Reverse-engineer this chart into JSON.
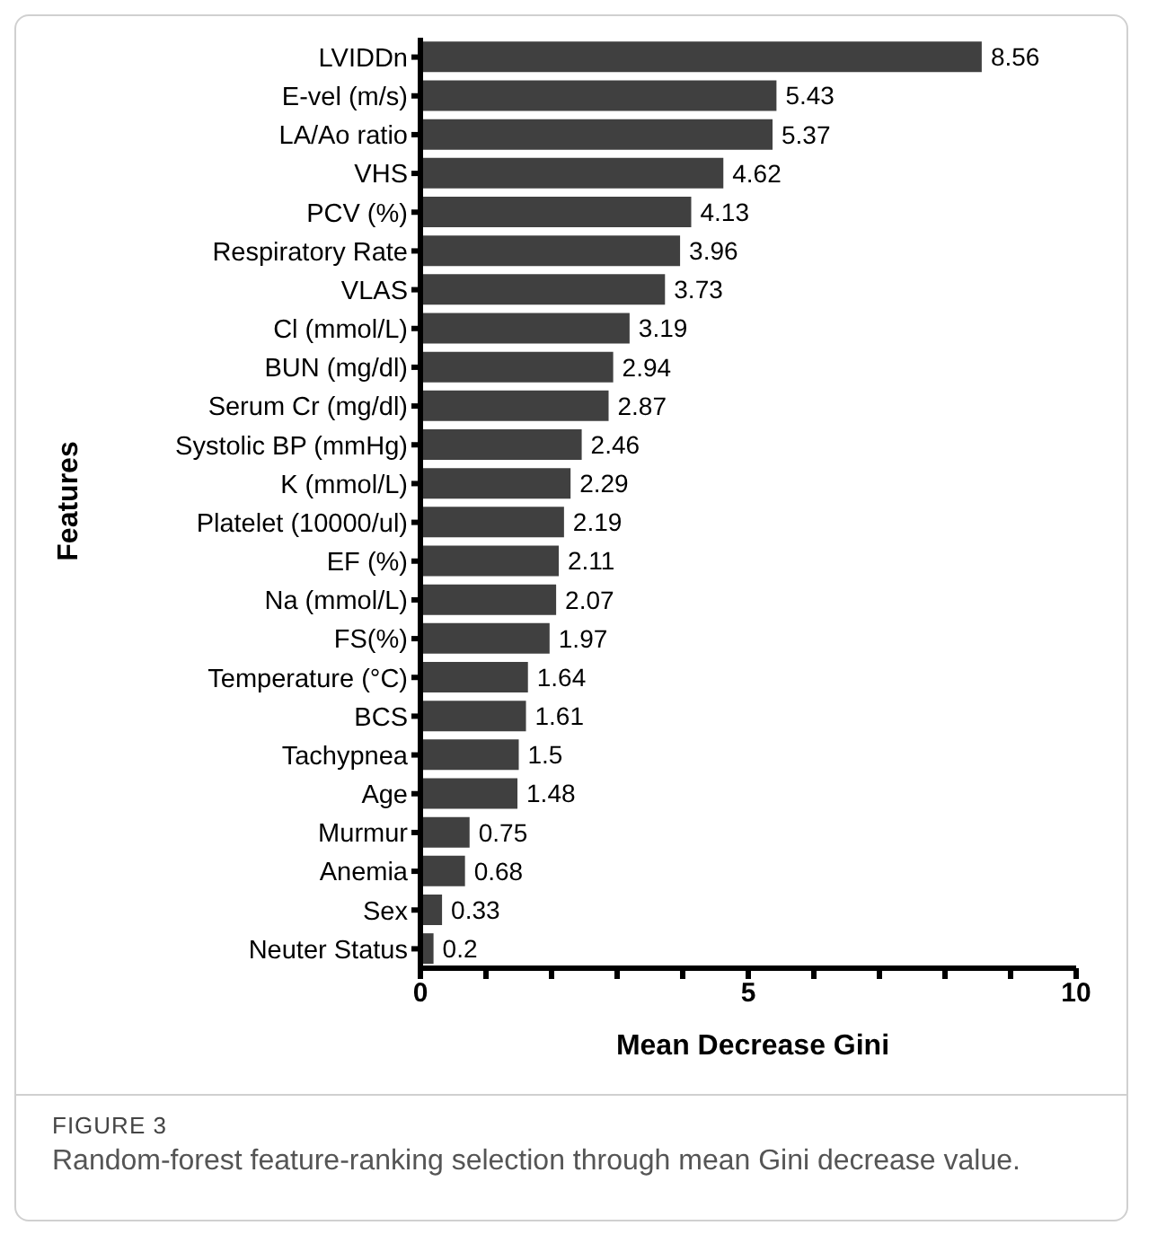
{
  "chart_data": {
    "type": "bar",
    "orientation": "horizontal",
    "categories": [
      "LVIDDn",
      "E-vel (m/s)",
      "LA/Ao ratio",
      "VHS",
      "PCV (%)",
      "Respiratory Rate",
      "VLAS",
      "Cl (mmol/L)",
      "BUN (mg/dl)",
      "Serum Cr (mg/dl)",
      "Systolic BP (mmHg)",
      "K (mmol/L)",
      "Platelet (10000/ul)",
      "EF (%)",
      "Na (mmol/L)",
      "FS(%)",
      "Temperature (°C)",
      "BCS",
      "Tachypnea",
      "Age",
      "Murmur",
      "Anemia",
      "Sex",
      "Neuter Status"
    ],
    "values": [
      8.56,
      5.43,
      5.37,
      4.62,
      4.13,
      3.96,
      3.73,
      3.19,
      2.94,
      2.87,
      2.46,
      2.29,
      2.19,
      2.11,
      2.07,
      1.97,
      1.64,
      1.61,
      1.5,
      1.48,
      0.75,
      0.68,
      0.33,
      0.2
    ],
    "color": "#404040",
    "data_labels": true,
    "xlabel": "Mean Decrease Gini",
    "ylabel": "Features",
    "xlim": [
      0,
      10
    ],
    "xticks": [
      0,
      {
        "value": 1,
        "label": null
      },
      {
        "value": 2,
        "label": null
      },
      {
        "value": 3,
        "label": null
      },
      {
        "value": 4,
        "label": null
      },
      5,
      {
        "value": 6,
        "label": null
      },
      {
        "value": 7,
        "label": null
      },
      {
        "value": 8,
        "label": null
      },
      {
        "value": 9,
        "label": null
      },
      10
    ],
    "grid": false,
    "legend": false,
    "annotations": [
      "FIGURE 3",
      "Random-forest feature-ranking selection through mean Gini decrease value."
    ]
  }
}
